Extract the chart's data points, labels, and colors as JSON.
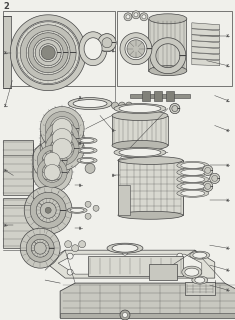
{
  "background_color": "#f0f0eb",
  "line_color": "#444444",
  "fig_width": 2.35,
  "fig_height": 3.2,
  "dpi": 100,
  "title": "2"
}
